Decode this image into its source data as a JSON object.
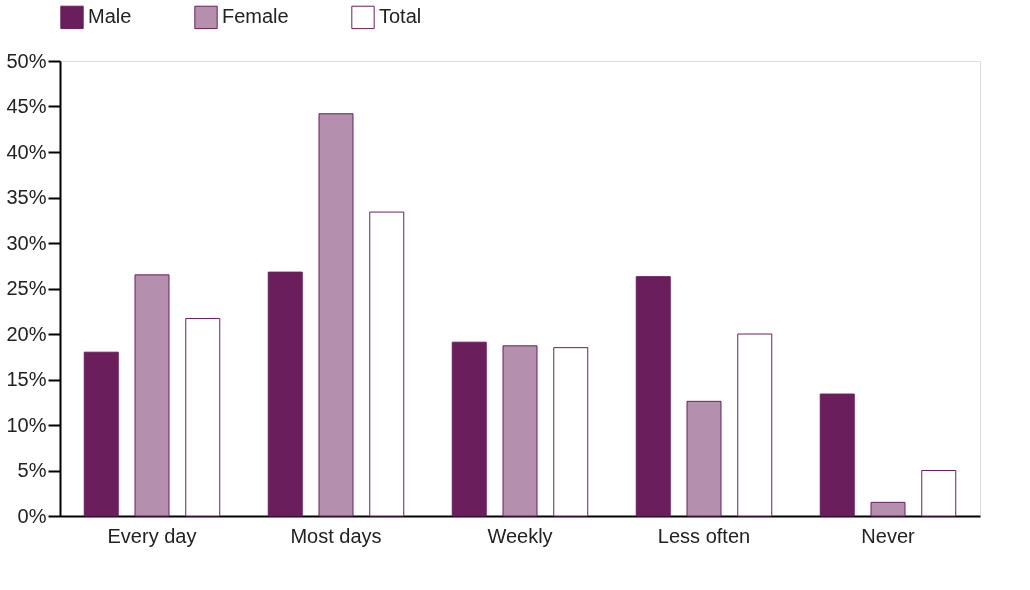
{
  "chart_data": {
    "type": "bar",
    "categories": [
      "Every day",
      "Most days",
      "Weekly",
      "Less often",
      "Never"
    ],
    "series": [
      {
        "name": "Male",
        "color": "#6a1f5c",
        "values": [
          18.0,
          26.8,
          19.1,
          26.3,
          13.4
        ]
      },
      {
        "name": "Female",
        "color": "#b48fae",
        "values": [
          26.5,
          44.2,
          18.7,
          12.6,
          1.5
        ]
      },
      {
        "name": "Total",
        "color": "#ffffff",
        "values": [
          21.7,
          33.4,
          18.5,
          20.0,
          5.0
        ]
      }
    ],
    "ylim": [
      0,
      50
    ],
    "yticks": [
      {
        "value": 0,
        "label": "0%"
      },
      {
        "value": 5,
        "label": "5%"
      },
      {
        "value": 10,
        "label": "10%"
      },
      {
        "value": 15,
        "label": "15%"
      },
      {
        "value": 20,
        "label": "20%"
      },
      {
        "value": 25,
        "label": "25%"
      },
      {
        "value": 30,
        "label": "30%"
      },
      {
        "value": 35,
        "label": "35%"
      },
      {
        "value": 40,
        "label": "40%"
      },
      {
        "value": 45,
        "label": "45%"
      },
      {
        "value": 50,
        "label": "50%"
      }
    ],
    "grid": false,
    "legend": "top left"
  }
}
